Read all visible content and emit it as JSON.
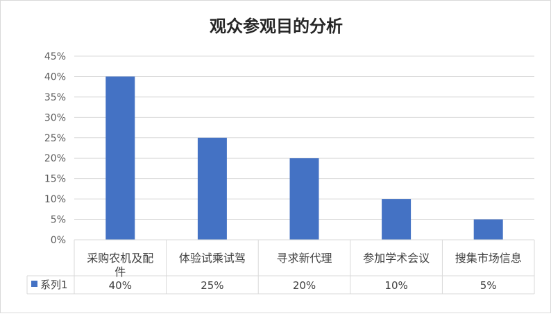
{
  "chart_data": {
    "type": "bar",
    "title": "观众参观目的分析",
    "categories": [
      [
        "采购农机及配",
        "件"
      ],
      [
        "体验试乘试驾"
      ],
      [
        "寻求新代理"
      ],
      [
        "参加学术会议"
      ],
      [
        "搜集市场信息"
      ]
    ],
    "series": [
      {
        "name": "系列1",
        "values": [
          0.4,
          0.25,
          0.2,
          0.1,
          0.05
        ],
        "labels": [
          "40%",
          "25%",
          "20%",
          "10%",
          "5%"
        ],
        "color": "#4472c4"
      }
    ],
    "y_ticks": [
      "0%",
      "5%",
      "10%",
      "15%",
      "20%",
      "25%",
      "30%",
      "35%",
      "40%",
      "45%"
    ],
    "ylim": [
      0,
      0.45
    ],
    "grid": true,
    "data_table": true,
    "legend_in_table": true
  },
  "colors": {
    "bar": "#4472c4",
    "grid": "#d9d9d9",
    "text": "#404040"
  }
}
